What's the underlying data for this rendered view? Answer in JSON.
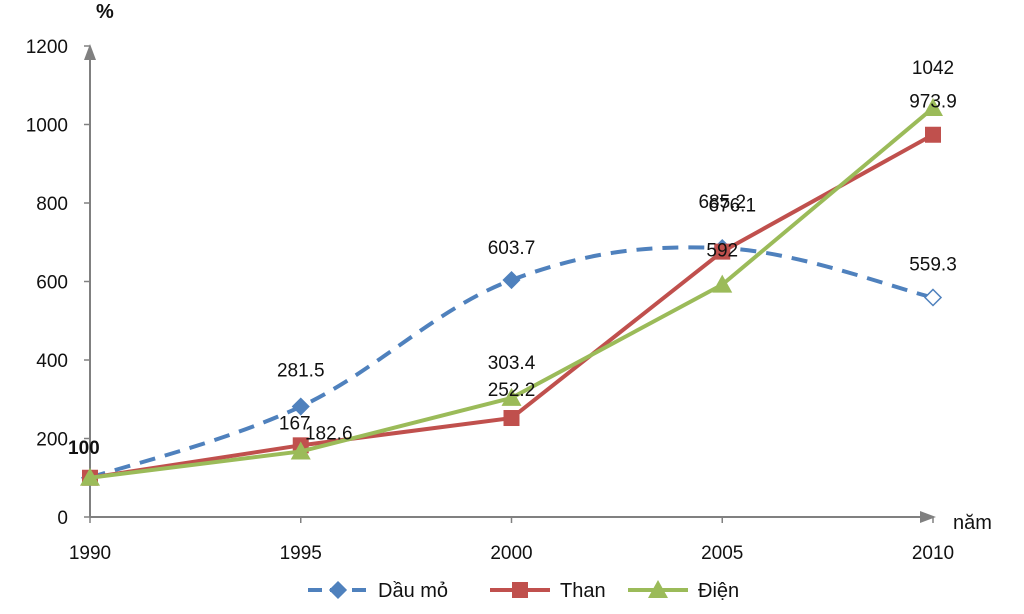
{
  "colors": {
    "dau_mo": "#4f81bd",
    "than": "#c0504d",
    "dien": "#9bbb59",
    "axis": "#808080",
    "text": "#111111"
  },
  "chart_data": {
    "type": "line",
    "title": "",
    "xlabel": "năm",
    "ylabel": "%",
    "ylim": [
      0,
      1200
    ],
    "yticks": [
      "0",
      "200",
      "400",
      "600",
      "800",
      "1000",
      "1200"
    ],
    "categories": [
      "1990",
      "1995",
      "2000",
      "2005",
      "2010"
    ],
    "legend_position": "bottom",
    "grid": false,
    "series": [
      {
        "name": "Dầu mỏ",
        "values": [
          100,
          281.5,
          603.7,
          685.2,
          559.3
        ],
        "labels": [
          "",
          "281.5",
          "603.7",
          "685.2",
          "559.3"
        ],
        "style": "dashed",
        "marker": "diamond",
        "color": "#4f81bd"
      },
      {
        "name": "Than",
        "values": [
          100,
          182.6,
          252.2,
          676.1,
          973.9
        ],
        "labels": [
          "",
          "182.6",
          "252.2",
          "676.1",
          "973.9"
        ],
        "style": "solid",
        "marker": "square",
        "color": "#c0504d"
      },
      {
        "name": "Điện",
        "values": [
          100,
          167,
          303.4,
          592,
          1042
        ],
        "labels": [
          "",
          "167",
          "303.4",
          "592",
          "1042"
        ],
        "style": "solid",
        "marker": "triangle",
        "color": "#9bbb59"
      }
    ],
    "start_label": "100"
  }
}
